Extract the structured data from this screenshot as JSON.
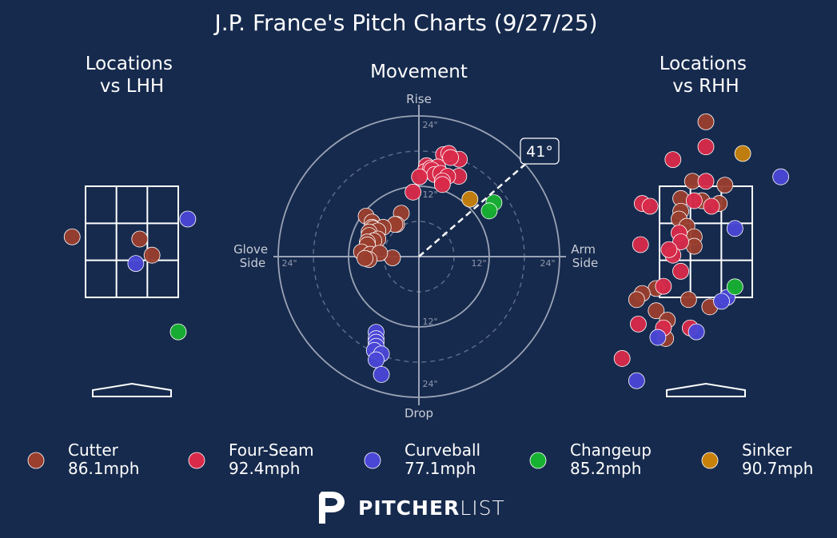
{
  "title": "J.P. France's Pitch Charts (9/27/25)",
  "colors": {
    "background": "#162a4d",
    "Cutter": "#9a3e2e",
    "Four-Seam": "#d92a4a",
    "Curveball": "#4a47d6",
    "Changeup": "#18b232",
    "Sinker": "#c8820c"
  },
  "chart_data": [
    {
      "type": "scatter",
      "name": "locations_lhh",
      "title": "Locations\nvs LHH",
      "xlabel": "",
      "ylabel": "",
      "xlim": [
        -2.0,
        2.0
      ],
      "ylim": [
        0.0,
        5.0
      ],
      "strike_zone": {
        "x": [
          -0.83,
          0.83
        ],
        "z": [
          1.5,
          3.5
        ]
      },
      "grid": "3x3 strike zone",
      "points": [
        {
          "pitch": "Cutter",
          "x": -1.07,
          "z": 2.59
        },
        {
          "pitch": "Cutter",
          "x": 0.14,
          "z": 2.55
        },
        {
          "pitch": "Cutter",
          "x": 0.36,
          "z": 2.26
        },
        {
          "pitch": "Curveball",
          "x": 1.0,
          "z": 2.91
        },
        {
          "pitch": "Curveball",
          "x": 0.07,
          "z": 2.11
        },
        {
          "pitch": "Changeup",
          "x": 0.83,
          "z": 0.88
        }
      ]
    },
    {
      "type": "scatter",
      "name": "movement",
      "title": "Movement",
      "axis_labels": {
        "top": "Rise",
        "bottom": "Drop",
        "left": "Glove\nSide",
        "right": "Arm\nSide"
      },
      "ring_labels": [
        "12\"",
        "24\""
      ],
      "rings_inches": [
        6,
        12,
        18,
        24
      ],
      "arm_angle_label": "41°",
      "arm_angle_deg": 41,
      "xlim": [
        -24,
        24
      ],
      "ylim": [
        -24,
        24
      ],
      "points": [
        {
          "pitch": "Four-Seam",
          "x": 4.2,
          "y": 17.4
        },
        {
          "pitch": "Four-Seam",
          "x": 5.1,
          "y": 17.6
        },
        {
          "pitch": "Four-Seam",
          "x": 6.9,
          "y": 16.6
        },
        {
          "pitch": "Four-Seam",
          "x": 5.4,
          "y": 16.9
        },
        {
          "pitch": "Four-Seam",
          "x": 1.3,
          "y": 15.5
        },
        {
          "pitch": "Four-Seam",
          "x": 1.0,
          "y": 14.5
        },
        {
          "pitch": "Four-Seam",
          "x": 2.0,
          "y": 15.1
        },
        {
          "pitch": "Four-Seam",
          "x": 3.2,
          "y": 15.3
        },
        {
          "pitch": "Four-Seam",
          "x": 2.2,
          "y": 14.8
        },
        {
          "pitch": "Four-Seam",
          "x": 2.7,
          "y": 14.0
        },
        {
          "pitch": "Four-Seam",
          "x": 3.7,
          "y": 14.2
        },
        {
          "pitch": "Four-Seam",
          "x": 0.1,
          "y": 13.6
        },
        {
          "pitch": "Four-Seam",
          "x": 6.8,
          "y": 13.7
        },
        {
          "pitch": "Four-Seam",
          "x": 4.9,
          "y": 13.7
        },
        {
          "pitch": "Four-Seam",
          "x": 4.0,
          "y": 12.9
        },
        {
          "pitch": "Four-Seam",
          "x": 4.0,
          "y": 12.3
        },
        {
          "pitch": "Four-Seam",
          "x": -1.0,
          "y": 11.0
        },
        {
          "pitch": "Cutter",
          "x": -3.0,
          "y": 7.4
        },
        {
          "pitch": "Cutter",
          "x": -9.0,
          "y": 6.9
        },
        {
          "pitch": "Cutter",
          "x": -8.0,
          "y": 5.9
        },
        {
          "pitch": "Cutter",
          "x": -3.8,
          "y": 5.5
        },
        {
          "pitch": "Cutter",
          "x": -4.1,
          "y": 5.5
        },
        {
          "pitch": "Cutter",
          "x": -6.1,
          "y": 5.0
        },
        {
          "pitch": "Cutter",
          "x": -8.0,
          "y": 5.0
        },
        {
          "pitch": "Cutter",
          "x": -7.8,
          "y": 4.8
        },
        {
          "pitch": "Cutter",
          "x": -7.0,
          "y": 4.4
        },
        {
          "pitch": "Cutter",
          "x": -8.5,
          "y": 4.2
        },
        {
          "pitch": "Cutter",
          "x": -8.5,
          "y": 3.6
        },
        {
          "pitch": "Cutter",
          "x": -7.0,
          "y": 3.0
        },
        {
          "pitch": "Cutter",
          "x": -7.7,
          "y": 2.7
        },
        {
          "pitch": "Cutter",
          "x": -8.8,
          "y": 2.5
        },
        {
          "pitch": "Cutter",
          "x": -8.8,
          "y": 2.0
        },
        {
          "pitch": "Cutter",
          "x": -9.8,
          "y": 0.8
        },
        {
          "pitch": "Cutter",
          "x": -8.3,
          "y": 0.4
        },
        {
          "pitch": "Cutter",
          "x": -4.5,
          "y": -0.2
        },
        {
          "pitch": "Cutter",
          "x": -6.7,
          "y": 0.6
        },
        {
          "pitch": "Cutter",
          "x": -8.5,
          "y": -0.5
        },
        {
          "pitch": "Cutter",
          "x": -9.2,
          "y": -0.3
        },
        {
          "pitch": "Sinker",
          "x": 8.7,
          "y": 9.8
        },
        {
          "pitch": "Changeup",
          "x": 12.8,
          "y": 9.2
        },
        {
          "pitch": "Changeup",
          "x": 12.0,
          "y": 7.8
        },
        {
          "pitch": "Curveball",
          "x": -7.3,
          "y": -12.9
        },
        {
          "pitch": "Curveball",
          "x": -7.3,
          "y": -14.0
        },
        {
          "pitch": "Curveball",
          "x": -7.3,
          "y": -14.6
        },
        {
          "pitch": "Curveball",
          "x": -7.3,
          "y": -15.3
        },
        {
          "pitch": "Curveball",
          "x": -7.6,
          "y": -16.0
        },
        {
          "pitch": "Curveball",
          "x": -6.4,
          "y": -16.6
        },
        {
          "pitch": "Curveball",
          "x": -7.3,
          "y": -17.6
        },
        {
          "pitch": "Curveball",
          "x": -6.4,
          "y": -20.1
        }
      ]
    },
    {
      "type": "scatter",
      "name": "locations_rhh",
      "title": "Locations\nvs RHH",
      "xlabel": "",
      "ylabel": "",
      "xlim": [
        -2.0,
        2.0
      ],
      "ylim": [
        0.0,
        5.0
      ],
      "strike_zone": {
        "x": [
          -0.83,
          0.83
        ],
        "z": [
          1.5,
          3.5
        ]
      },
      "grid": "3x3 strike zone",
      "points": [
        {
          "pitch": "Cutter",
          "x": 0.0,
          "z": 4.66
        },
        {
          "pitch": "Cutter",
          "x": -0.24,
          "z": 3.59
        },
        {
          "pitch": "Cutter",
          "x": 0.34,
          "z": 3.52
        },
        {
          "pitch": "Cutter",
          "x": -0.45,
          "z": 3.28
        },
        {
          "pitch": "Cutter",
          "x": -0.07,
          "z": 3.24
        },
        {
          "pitch": "Cutter",
          "x": 0.24,
          "z": 3.19
        },
        {
          "pitch": "Cutter",
          "x": -0.45,
          "z": 3.05
        },
        {
          "pitch": "Cutter",
          "x": -0.48,
          "z": 2.91
        },
        {
          "pitch": "Cutter",
          "x": -0.34,
          "z": 2.78
        },
        {
          "pitch": "Cutter",
          "x": -0.21,
          "z": 2.59
        },
        {
          "pitch": "Cutter",
          "x": -0.21,
          "z": 2.42
        },
        {
          "pitch": "Cutter",
          "x": -0.89,
          "z": 1.66
        },
        {
          "pitch": "Cutter",
          "x": -1.14,
          "z": 1.57
        },
        {
          "pitch": "Cutter",
          "x": -0.89,
          "z": 1.26
        },
        {
          "pitch": "Cutter",
          "x": -1.24,
          "z": 1.46
        },
        {
          "pitch": "Cutter",
          "x": -0.31,
          "z": 1.46
        },
        {
          "pitch": "Cutter",
          "x": 0.07,
          "z": 1.33
        },
        {
          "pitch": "Cutter",
          "x": -0.69,
          "z": 1.09
        },
        {
          "pitch": "Cutter",
          "x": -0.72,
          "z": 0.76
        },
        {
          "pitch": "Four-Seam",
          "x": 0.0,
          "z": 4.21
        },
        {
          "pitch": "Four-Seam",
          "x": -0.59,
          "z": 3.98
        },
        {
          "pitch": "Four-Seam",
          "x": 0.0,
          "z": 3.59
        },
        {
          "pitch": "Four-Seam",
          "x": -1.14,
          "z": 3.19
        },
        {
          "pitch": "Four-Seam",
          "x": -1.0,
          "z": 3.14
        },
        {
          "pitch": "Four-Seam",
          "x": -0.21,
          "z": 3.24
        },
        {
          "pitch": "Four-Seam",
          "x": 0.1,
          "z": 3.14
        },
        {
          "pitch": "Four-Seam",
          "x": -0.48,
          "z": 2.66
        },
        {
          "pitch": "Four-Seam",
          "x": -0.45,
          "z": 2.5
        },
        {
          "pitch": "Four-Seam",
          "x": -1.17,
          "z": 2.45
        },
        {
          "pitch": "Four-Seam",
          "x": -0.59,
          "z": 2.26
        },
        {
          "pitch": "Four-Seam",
          "x": -0.66,
          "z": 2.36
        },
        {
          "pitch": "Four-Seam",
          "x": -0.45,
          "z": 1.97
        },
        {
          "pitch": "Four-Seam",
          "x": -0.76,
          "z": 1.7
        },
        {
          "pitch": "Four-Seam",
          "x": -1.21,
          "z": 1.02
        },
        {
          "pitch": "Four-Seam",
          "x": -0.76,
          "z": 0.95
        },
        {
          "pitch": "Four-Seam",
          "x": -0.28,
          "z": 0.95
        },
        {
          "pitch": "Four-Seam",
          "x": -1.5,
          "z": 0.4
        },
        {
          "pitch": "Curveball",
          "x": 1.34,
          "z": 3.67
        },
        {
          "pitch": "Curveball",
          "x": 0.52,
          "z": 2.74
        },
        {
          "pitch": "Curveball",
          "x": 0.38,
          "z": 1.5
        },
        {
          "pitch": "Curveball",
          "x": 0.28,
          "z": 1.43
        },
        {
          "pitch": "Curveball",
          "x": -0.17,
          "z": 0.88
        },
        {
          "pitch": "Curveball",
          "x": -0.86,
          "z": 0.78
        },
        {
          "pitch": "Curveball",
          "x": -1.24,
          "z": 0.0
        },
        {
          "pitch": "Changeup",
          "x": 0.52,
          "z": 1.69
        },
        {
          "pitch": "Sinker",
          "x": 0.66,
          "z": 4.09
        }
      ]
    }
  ],
  "legend": [
    {
      "pitch": "Cutter",
      "speed": "86.1mph"
    },
    {
      "pitch": "Four-Seam",
      "speed": "92.4mph"
    },
    {
      "pitch": "Curveball",
      "speed": "77.1mph"
    },
    {
      "pitch": "Changeup",
      "speed": "85.2mph"
    },
    {
      "pitch": "Sinker",
      "speed": "90.7mph"
    }
  ],
  "logo": {
    "text_bold": "PITCHER",
    "text_light": "LIST"
  }
}
